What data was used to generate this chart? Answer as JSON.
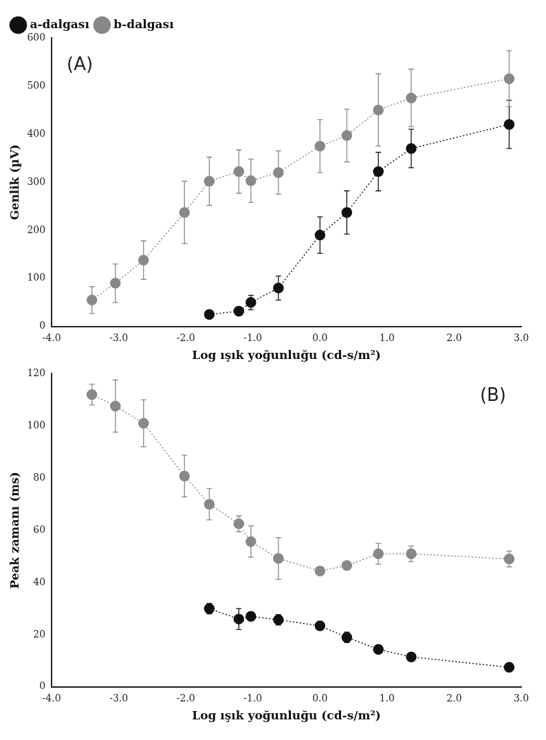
{
  "chart_data": [
    {
      "type": "line",
      "annotations": [
        "(A)"
      ],
      "xlabel": "Log ışık yoğunluğu (cd-s/m²)",
      "ylabel": "Genlik (µV)",
      "xlim": [
        -4,
        3
      ],
      "xticks": [
        {
          "value": -4,
          "label": "-4.0"
        },
        {
          "value": -3,
          "label": "-3.0"
        },
        {
          "value": -2,
          "label": "-2.0"
        },
        {
          "value": -1,
          "label": "-1.0"
        },
        {
          "value": 0,
          "label": "0.0"
        },
        {
          "value": 1,
          "label": "1.0"
        },
        {
          "value": 2,
          "label": "2.0"
        },
        {
          "value": 3,
          "label": "3.0"
        }
      ],
      "ylim": [
        0,
        600
      ],
      "yticks": [
        0,
        100,
        200,
        300,
        400,
        500,
        600
      ],
      "grid": false,
      "legend": "top left",
      "marker": "circle",
      "line_style": "dotted",
      "series": [
        {
          "name": "a-dalgası",
          "color": "#111111",
          "x": [
            -1.65,
            -1.21,
            -1.03,
            -0.62,
            0,
            0.4,
            0.87,
            1.36,
            2.82
          ],
          "values": [
            25,
            32,
            50,
            80,
            190,
            237,
            322,
            370,
            420
          ],
          "errors": [
            null,
            null,
            15,
            25,
            38,
            45,
            40,
            40,
            50
          ]
        },
        {
          "name": "b-dalgası",
          "color": "#888888",
          "x": [
            -3.4,
            -3.05,
            -2.63,
            -2.02,
            -1.65,
            -1.21,
            -1.03,
            -0.62,
            0,
            0.4,
            0.87,
            1.36,
            2.82
          ],
          "values": [
            55,
            90,
            138,
            237,
            302,
            322,
            303,
            320,
            375,
            397,
            450,
            475,
            515
          ],
          "errors": [
            28,
            40,
            40,
            65,
            50,
            45,
            45,
            45,
            55,
            55,
            75,
            60,
            58
          ]
        }
      ]
    },
    {
      "type": "line",
      "annotations": [
        "(B)"
      ],
      "xlabel": "Log ışık yoğunluğu (cd-s/m²)",
      "ylabel": "Peak zamanı (ms)",
      "xlim": [
        -4,
        3
      ],
      "xticks": [
        {
          "value": -4,
          "label": "-4.0"
        },
        {
          "value": -3,
          "label": "-3.0"
        },
        {
          "value": -2,
          "label": "-2.0"
        },
        {
          "value": -1,
          "label": "-1.0"
        },
        {
          "value": 0,
          "label": "0.0"
        },
        {
          "value": 1,
          "label": "1.0"
        },
        {
          "value": 2,
          "label": "2.0"
        },
        {
          "value": 3,
          "label": "3.0"
        }
      ],
      "ylim": [
        0,
        120
      ],
      "yticks": [
        0,
        20,
        40,
        60,
        80,
        100,
        120
      ],
      "grid": false,
      "marker": "circle",
      "line_style": "dotted",
      "series": [
        {
          "color": "#111111",
          "x": [
            -1.65,
            -1.21,
            -1.03,
            -0.62,
            0,
            0.4,
            0.87,
            1.36,
            2.82
          ],
          "values": [
            30,
            26,
            27,
            25.7,
            23.4,
            19,
            14.4,
            11.5,
            7.5
          ],
          "errors": [
            2,
            4,
            null,
            2,
            null,
            2,
            null,
            null,
            null
          ]
        },
        {
          "color": "#888888",
          "x": [
            -3.4,
            -3.05,
            -2.63,
            -2.02,
            -1.65,
            -1.21,
            -1.03,
            -0.62,
            0,
            0.4,
            0.87,
            1.36,
            2.82
          ],
          "values": [
            112,
            107.6,
            101,
            80.8,
            70,
            62.5,
            55.7,
            49.2,
            44.4,
            46.5,
            51,
            51,
            49
          ],
          "errors": [
            4,
            10,
            9,
            8,
            6,
            3,
            6,
            8,
            null,
            null,
            4,
            3,
            3
          ]
        }
      ]
    }
  ]
}
